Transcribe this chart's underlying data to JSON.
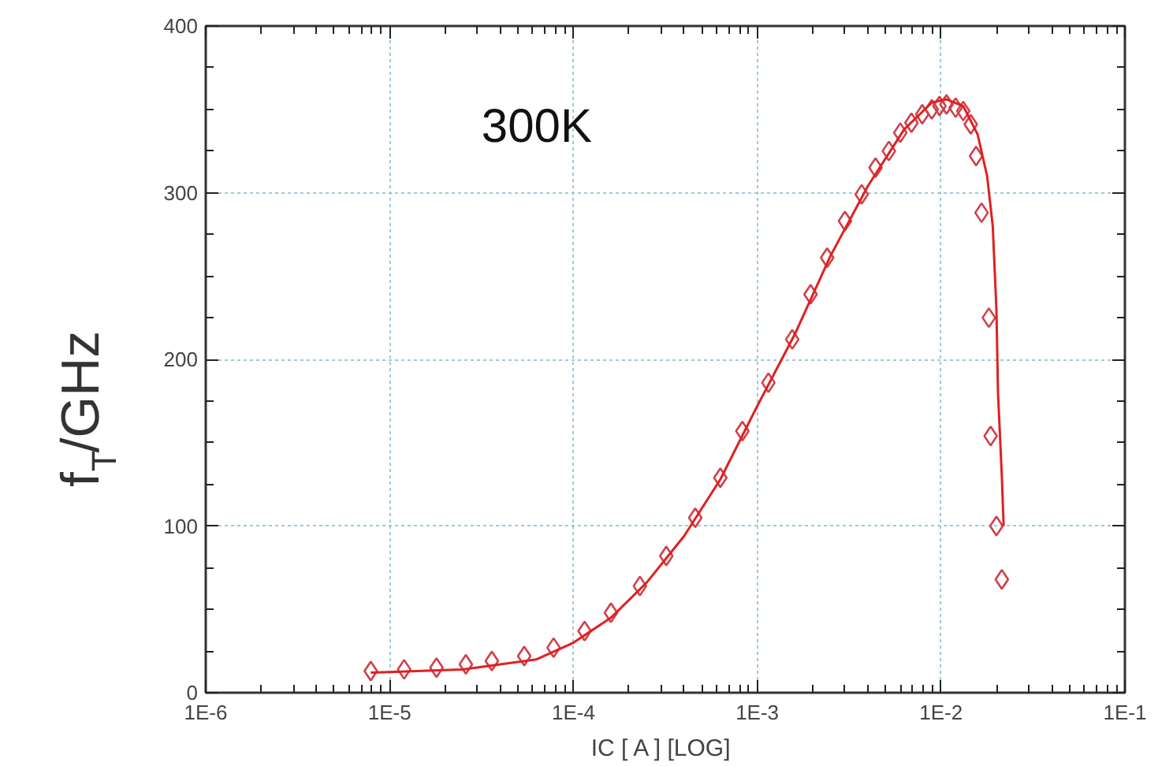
{
  "chart_data": {
    "type": "scatter",
    "xlabel": "IC [ A ]  [LOG]",
    "ylabel": "f$_{T}$/GHz",
    "log": "x",
    "grid": true,
    "xlim": [
      1e-06,
      0.1
    ],
    "ylim": [
      0,
      400
    ],
    "xticks": [
      {
        "value": 1e-06,
        "label": "1E-6"
      },
      {
        "value": 1e-05,
        "label": "1E-5"
      },
      {
        "value": 0.0001,
        "label": "1E-4"
      },
      {
        "value": 0.001,
        "label": "1E-3"
      },
      {
        "value": 0.01,
        "label": "1E-2"
      },
      {
        "value": 0.1,
        "label": "1E-1"
      }
    ],
    "yticks": [
      0,
      100,
      200,
      300,
      400
    ],
    "annotations": [
      "300K"
    ],
    "series": [
      {
        "type": "scatter",
        "marker": "diamond",
        "color": "#d0404a",
        "x": [
          7.9e-06,
          1.2e-05,
          1.8e-05,
          2.6e-05,
          3.6e-05,
          5.4e-05,
          7.8e-05,
          0.000115,
          0.00016,
          0.00023,
          0.00032,
          0.00046,
          0.00063,
          0.00083,
          0.00115,
          0.00155,
          0.00195,
          0.0024,
          0.003,
          0.0037,
          0.0044,
          0.0052,
          0.006,
          0.0069,
          0.0079,
          0.0089,
          0.0098,
          0.0107,
          0.012,
          0.0132,
          0.0145,
          0.0155,
          0.0166,
          0.0182,
          0.0186,
          0.02,
          0.0214
        ],
        "values": [
          13,
          14,
          15,
          17,
          19,
          22,
          27,
          37,
          48,
          64,
          82,
          105,
          129,
          157,
          186,
          212,
          239,
          261,
          283,
          299,
          315,
          325,
          336,
          342,
          347,
          350,
          352,
          353,
          351,
          349,
          341,
          322,
          288,
          225,
          154,
          100,
          68
        ]
      },
      {
        "type": "line",
        "marker": "none",
        "color": "#e02020",
        "x": [
          7.9e-06,
          2.5e-05,
          6.3e-05,
          0.0001,
          0.00016,
          0.00025,
          0.0004,
          0.00063,
          0.001,
          0.0016,
          0.0025,
          0.004,
          0.0063,
          0.0089,
          0.0107,
          0.0132,
          0.0158,
          0.0178,
          0.0191,
          0.02,
          0.0204,
          0.0214,
          0.0219
        ],
        "values": [
          12,
          14,
          20,
          30,
          45,
          66,
          94,
          128,
          172,
          215,
          262,
          304,
          338,
          354,
          356,
          352,
          335,
          310,
          280,
          230,
          180,
          130,
          100
        ]
      }
    ]
  }
}
